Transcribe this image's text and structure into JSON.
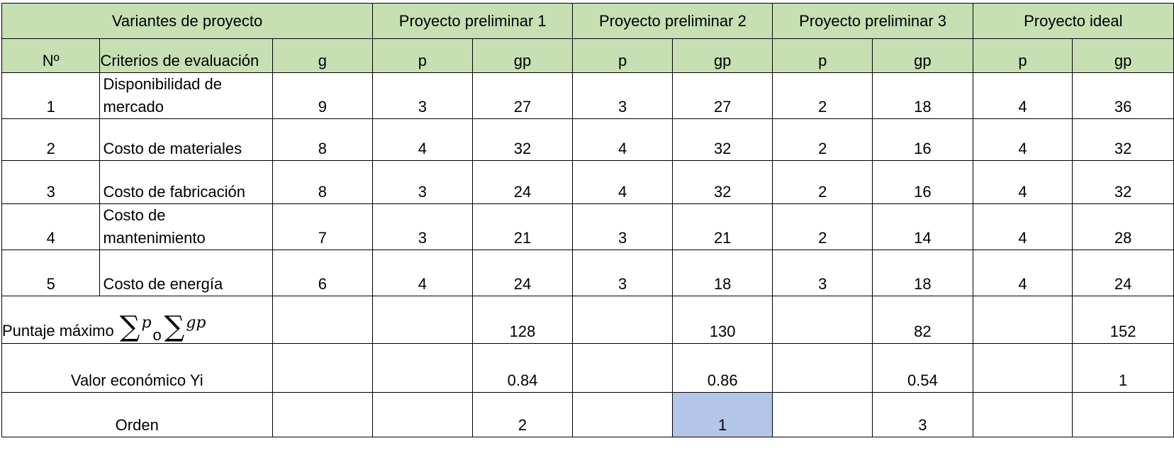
{
  "header": {
    "variants_label": "Variantes de proyecto",
    "projects": [
      "Proyecto preliminar 1",
      "Proyecto preliminar 2",
      "Proyecto preliminar 3",
      "Proyecto ideal"
    ],
    "col_no": "Nº",
    "col_criteria": "Criterios de evaluación",
    "col_g": "g",
    "col_p": "p",
    "col_gp": "gp"
  },
  "rows": [
    {
      "no": "1",
      "criteria": "Disponibilidad de mercado",
      "g": "9",
      "p1": "3",
      "gp1": "27",
      "p2": "3",
      "gp2": "27",
      "p3": "2",
      "gp3": "18",
      "p4": "4",
      "gp4": "36"
    },
    {
      "no": "2",
      "criteria": "Costo de materiales",
      "g": "8",
      "p1": "4",
      "gp1": "32",
      "p2": "4",
      "gp2": "32",
      "p3": "2",
      "gp3": "16",
      "p4": "4",
      "gp4": "32"
    },
    {
      "no": "3",
      "criteria": "Costo de fabricación",
      "g": "8",
      "p1": "3",
      "gp1": "24",
      "p2": "4",
      "gp2": "32",
      "p3": "2",
      "gp3": "16",
      "p4": "4",
      "gp4": "32"
    },
    {
      "no": "4",
      "criteria": "Costo de mantenimiento",
      "g": "7",
      "p1": "3",
      "gp1": "21",
      "p2": "3",
      "gp2": "21",
      "p3": "2",
      "gp3": "14",
      "p4": "4",
      "gp4": "28"
    },
    {
      "no": "5",
      "criteria": "Costo de energía",
      "g": "6",
      "p1": "4",
      "gp1": "24",
      "p2": "3",
      "gp2": "18",
      "p3": "3",
      "gp3": "18",
      "p4": "4",
      "gp4": "24"
    }
  ],
  "summary": {
    "max_score_label": "Puntaje máximo",
    "formula": {
      "sigma": "∑",
      "p": "p",
      "or": "o",
      "gp": "gp"
    },
    "max_scores": [
      "128",
      "130",
      "82",
      "152"
    ],
    "econ_label": "Valor económico Yi",
    "econ_values": [
      "0.84",
      "0.86",
      "0.54",
      "1"
    ],
    "order_label": "Orden",
    "order_values": [
      "2",
      "1",
      "3",
      ""
    ]
  },
  "colors": {
    "header_fill": "#c6e0b4",
    "highlight_fill": "#b4c6e7",
    "border": "#000000"
  }
}
